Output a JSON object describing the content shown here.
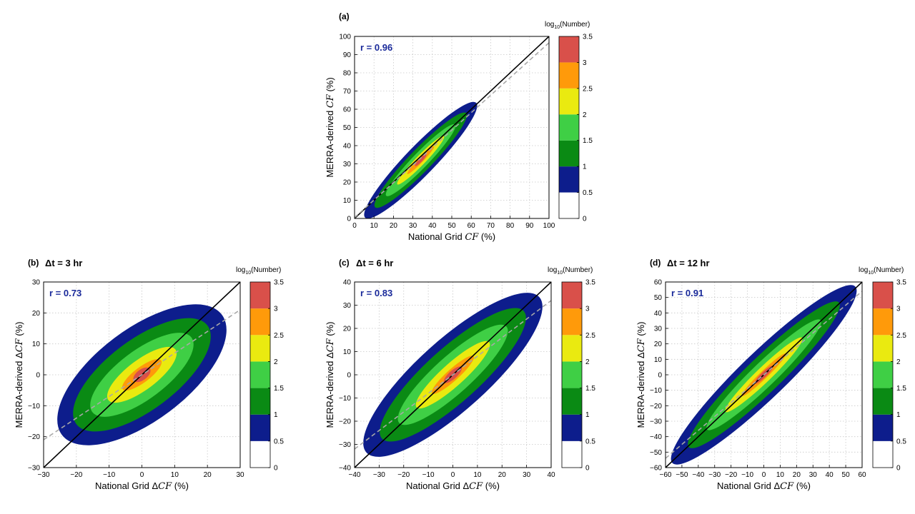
{
  "colorbar": {
    "title": "log",
    "title_sub": "10",
    "title_suffix": "(Number)",
    "ticks": [
      "0",
      "0.5",
      "1",
      "1.5",
      "2",
      "2.5",
      "3",
      "3.5"
    ],
    "colors": [
      "#ffffff",
      "#0d1d8c",
      "#0a8a14",
      "#3fcf45",
      "#eaea10",
      "#ff9a0a",
      "#d9504a"
    ]
  },
  "chart_data": [
    {
      "type": "heatmap",
      "panel": "(a)",
      "subtitle": "",
      "r_label": "r = 0.96",
      "r": 0.96,
      "xlabel_pre": "National Grid ",
      "xlabel_var": "CF",
      "xlabel_post": " (%)",
      "ylabel_pre": "MERRA-derived ",
      "ylabel_var": "CF",
      "ylabel_post": " (%)",
      "xlim": [
        0,
        100
      ],
      "ylim": [
        0,
        100
      ],
      "xticks": [
        0,
        10,
        20,
        30,
        40,
        50,
        60,
        70,
        80,
        90,
        100
      ],
      "yticks": [
        0,
        10,
        20,
        30,
        40,
        50,
        60,
        70,
        80,
        90,
        100
      ],
      "grid": true,
      "one_to_one_line": true,
      "regression_slope": 0.96,
      "regression_intercept": 0.5
    },
    {
      "type": "heatmap",
      "panel": "(b)",
      "subtitle": "Δt = 3 hr",
      "r_label": "r = 0.73",
      "r": 0.73,
      "xlabel_pre": "National Grid Δ",
      "xlabel_var": "CF",
      "xlabel_post": " (%)",
      "ylabel_pre": "MERRA-derived Δ",
      "ylabel_var": "CF",
      "ylabel_post": " (%)",
      "xlim": [
        -30,
        30
      ],
      "ylim": [
        -30,
        30
      ],
      "xticks": [
        -30,
        -20,
        -10,
        0,
        10,
        20,
        30
      ],
      "yticks": [
        -30,
        -20,
        -10,
        0,
        10,
        20,
        30
      ],
      "grid": true,
      "one_to_one_line": true,
      "regression_slope": 0.7,
      "regression_intercept": 0
    },
    {
      "type": "heatmap",
      "panel": "(c)",
      "subtitle": "Δt = 6 hr",
      "r_label": "r = 0.83",
      "r": 0.83,
      "xlabel_pre": "National Grid Δ",
      "xlabel_var": "CF",
      "xlabel_post": " (%)",
      "ylabel_pre": "MERRA-derived Δ",
      "ylabel_var": "CF",
      "ylabel_post": " (%)",
      "xlim": [
        -40,
        40
      ],
      "ylim": [
        -40,
        40
      ],
      "xticks": [
        -40,
        -30,
        -20,
        -10,
        0,
        10,
        20,
        30,
        40
      ],
      "yticks": [
        -40,
        -30,
        -20,
        -10,
        0,
        10,
        20,
        30,
        40
      ],
      "grid": true,
      "one_to_one_line": true,
      "regression_slope": 0.8,
      "regression_intercept": 0
    },
    {
      "type": "heatmap",
      "panel": "(d)",
      "subtitle": "Δt = 12 hr",
      "r_label": "r = 0.91",
      "r": 0.91,
      "xlabel_pre": "National Grid Δ",
      "xlabel_var": "CF",
      "xlabel_post": " (%)",
      "ylabel_pre": "MERRA-derived Δ",
      "ylabel_var": "CF",
      "ylabel_post": " (%)",
      "xlim": [
        -60,
        60
      ],
      "ylim": [
        -60,
        60
      ],
      "xticks": [
        -60,
        -50,
        -40,
        -30,
        -20,
        -10,
        0,
        10,
        20,
        30,
        40,
        50,
        60
      ],
      "yticks": [
        -60,
        -50,
        -40,
        -30,
        -20,
        -10,
        0,
        10,
        20,
        30,
        40,
        50,
        60
      ],
      "grid": true,
      "one_to_one_line": true,
      "regression_slope": 0.9,
      "regression_intercept": 0
    }
  ]
}
